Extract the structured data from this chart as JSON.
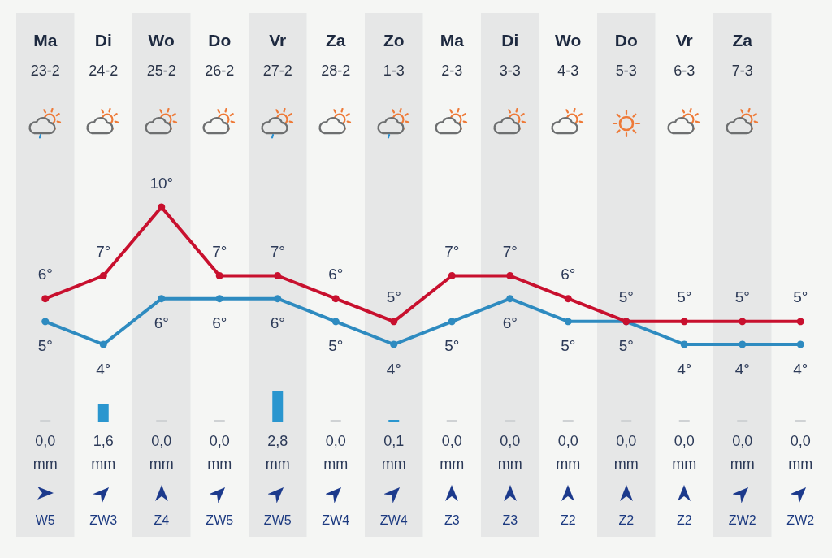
{
  "chart_data": [
    {
      "type": "line",
      "categories": [
        "Ma\n23-2",
        "Di\n24-2",
        "Wo\n25-2",
        "Do\n26-2",
        "Vr\n27-2",
        "Za\n28-2",
        "Zo\n1-3",
        "Ma\n2-3",
        "Di\n3-3",
        "Wo\n4-3",
        "Do\n5-3",
        "Vr\n6-3",
        "Za\n7-3",
        null
      ],
      "series": [
        {
          "color": "#c8102e",
          "values": [
            6,
            7,
            10,
            7,
            7,
            6,
            5,
            7,
            7,
            6,
            5,
            5,
            5,
            5
          ],
          "value_labels": [
            "6°",
            "7°",
            "10°",
            "7°",
            "7°",
            "6°",
            "5°",
            "7°",
            "7°",
            "6°",
            "5°",
            "5°",
            "5°",
            "5°"
          ]
        },
        {
          "color": "#2e8bc0",
          "values": [
            5,
            4,
            6,
            6,
            6,
            5,
            4,
            5,
            6,
            5,
            5,
            4,
            4,
            4
          ],
          "value_labels": [
            "5°",
            "4°",
            "6°",
            "6°",
            "6°",
            "5°",
            "4°",
            "5°",
            "6°",
            "5°",
            "5°",
            "4°",
            "4°",
            "4°"
          ]
        }
      ],
      "bands": [
        {
          "axis": "x",
          "from": "Ma\n23-2",
          "to": "Ma\n23-2",
          "color": "#e6e7e7"
        },
        {
          "axis": "x",
          "from": "Wo\n25-2",
          "to": "Wo\n25-2",
          "color": "#e6e7e7"
        },
        {
          "axis": "x",
          "from": "Vr\n27-2",
          "to": "Vr\n27-2",
          "color": "#e6e7e7"
        },
        {
          "axis": "x",
          "from": "Zo\n1-3",
          "to": "Zo\n1-3",
          "color": "#e6e7e7"
        },
        {
          "axis": "x",
          "from": "Di\n3-3",
          "to": "Di\n3-3",
          "color": "#e6e7e7"
        },
        {
          "axis": "x",
          "from": "Do\n5-3",
          "to": "Do\n5-3",
          "color": "#e6e7e7"
        },
        {
          "axis": "x",
          "from": "Za\n7-3",
          "to": "Za\n7-3",
          "color": "#e6e7e7"
        }
      ],
      "annotations": [
        "W5",
        "ZW3",
        "Z4",
        "ZW5",
        "ZW5",
        "ZW4",
        "ZW4",
        "Z3",
        "Z3",
        "Z2",
        "Z2",
        "Z2",
        "ZW2",
        "ZW2"
      ],
      "marker": "circle",
      "line_style": "solid",
      "tick_labels": "x"
    },
    {
      "type": "bar",
      "categories": [
        null,
        null,
        null,
        null,
        null,
        null,
        null,
        null,
        null,
        null,
        null,
        null,
        null,
        null
      ],
      "values": [
        0,
        1.6,
        0,
        0,
        2.8,
        0,
        0.1,
        0,
        0,
        0,
        0,
        0,
        0,
        0
      ],
      "colors": [
        "#cfd2d4",
        "#2a96cf",
        "#cfd2d4",
        "#cfd2d4",
        "#2a96cf",
        "#cfd2d4",
        "#2a96cf",
        "#cfd2d4",
        "#cfd2d4",
        "#cfd2d4",
        "#cfd2d4",
        "#cfd2d4",
        "#cfd2d4",
        "#cfd2d4"
      ],
      "value_labels": [
        "0,0\nmm",
        "1,6\nmm",
        "0,0\nmm",
        "0,0\nmm",
        "2,8\nmm",
        "0,0\nmm",
        "0,1\nmm",
        "0,0\nmm",
        "0,0\nmm",
        "0,0\nmm",
        "0,0\nmm",
        "0,0\nmm",
        "0,0\nmm",
        "0,0\nmm"
      ],
      "ylim": [
        0,
        2.8
      ],
      "tick_labels": false
    }
  ]
}
